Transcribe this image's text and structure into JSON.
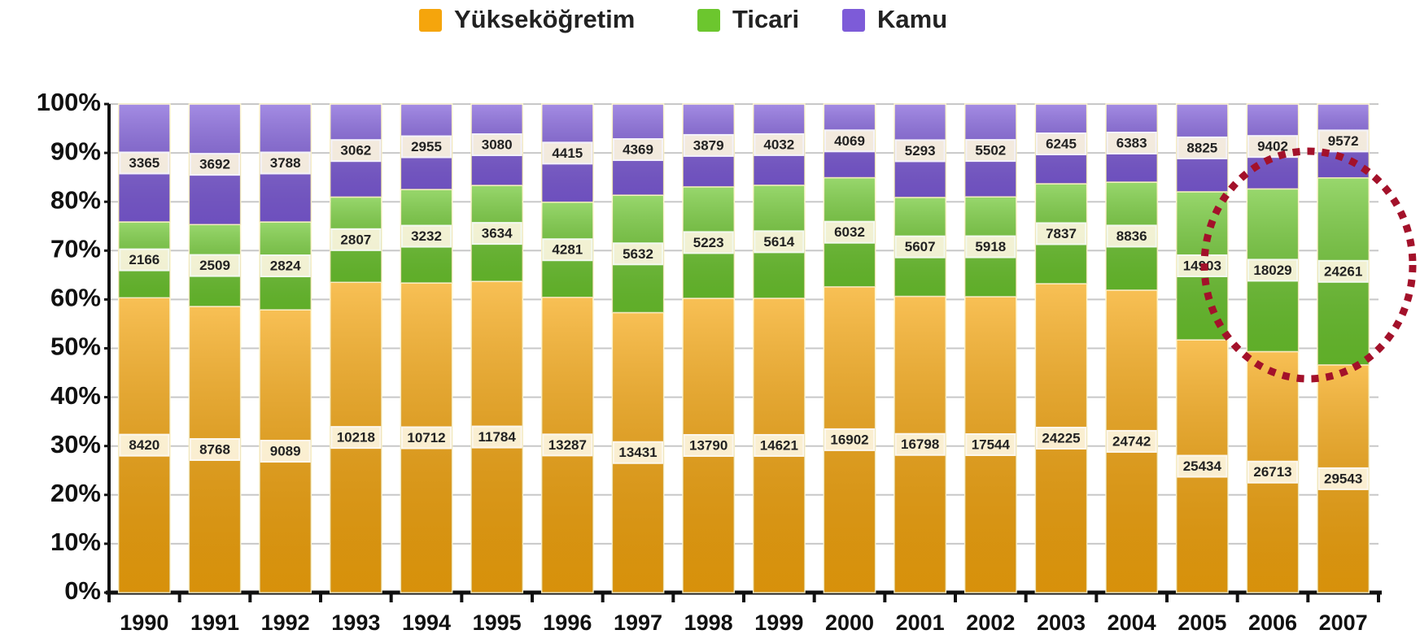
{
  "chart_data": {
    "type": "bar",
    "stacked": "percent",
    "categories": [
      "1990",
      "1991",
      "1992",
      "1993",
      "1994",
      "1995",
      "1996",
      "1997",
      "1998",
      "1999",
      "2000",
      "2001",
      "2002",
      "2003",
      "2004",
      "2005",
      "2006",
      "2007"
    ],
    "series": [
      {
        "name": "Yükseköğretim",
        "color": "#f5a50c",
        "values": [
          8420,
          8768,
          9089,
          10218,
          10712,
          11784,
          13287,
          13431,
          13790,
          14621,
          16902,
          16798,
          17544,
          24225,
          24742,
          25434,
          26713,
          29543
        ]
      },
      {
        "name": "Ticari",
        "color": "#6cc62e",
        "values": [
          2166,
          2509,
          2824,
          2807,
          3232,
          3634,
          4281,
          5632,
          5223,
          5614,
          6032,
          5607,
          5918,
          7837,
          8836,
          14903,
          18029,
          24261
        ]
      },
      {
        "name": "Kamu",
        "color": "#7d5bd8",
        "values": [
          3365,
          3692,
          3788,
          3062,
          2955,
          3080,
          4415,
          4369,
          3879,
          4032,
          4069,
          5293,
          5502,
          6245,
          6383,
          8825,
          9402,
          9572
        ]
      }
    ],
    "ylim": [
      0,
      100
    ],
    "yticks": [
      {
        "value": 0,
        "label": "0%"
      },
      {
        "value": 10,
        "label": "10%"
      },
      {
        "value": 20,
        "label": "20%"
      },
      {
        "value": 30,
        "label": "30%"
      },
      {
        "value": 40,
        "label": "40%"
      },
      {
        "value": 50,
        "label": "50%"
      },
      {
        "value": 60,
        "label": "60%"
      },
      {
        "value": 70,
        "label": "70%"
      },
      {
        "value": 80,
        "label": "80%"
      },
      {
        "value": 90,
        "label": "90%"
      },
      {
        "value": 100,
        "label": "100%"
      }
    ],
    "grid": true,
    "legend": "top"
  }
}
